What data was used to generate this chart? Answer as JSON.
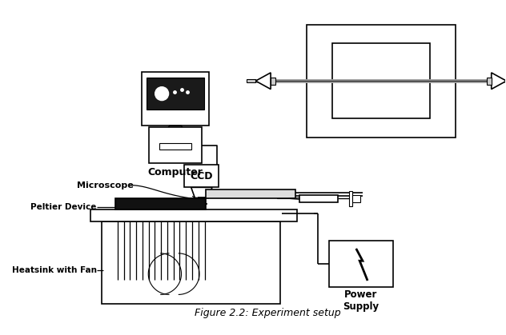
{
  "title": "Figure 2.2: Experiment setup",
  "bg_color": "#ffffff",
  "line_color": "#000000",
  "gray_color": "#aaaaaa",
  "dark_color": "#111111",
  "labels": {
    "computer": "Computer",
    "ccd": "CCD",
    "microscope": "Microscope",
    "peltier": "Peltier Device",
    "heatsink": "Heatsink with Fan",
    "power_supply": "Power\nSupply"
  }
}
